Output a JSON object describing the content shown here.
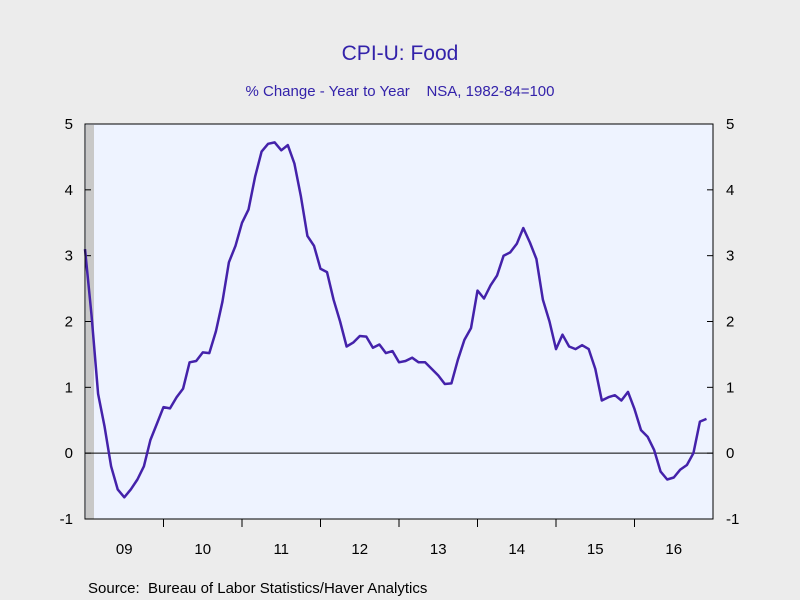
{
  "chart_data": {
    "type": "line",
    "title": "CPI-U: Food",
    "subtitle": "% Change - Year to Year    NSA, 1982-84=100",
    "source": "Source:  Bureau of Labor Statistics/Haver Analytics",
    "ylim": [
      -1,
      5
    ],
    "yticks": [
      "5",
      "4",
      "3",
      "2",
      "1",
      "0",
      "-1"
    ],
    "ytick_values": [
      5,
      4,
      3,
      2,
      1,
      0,
      -1
    ],
    "xlim": [
      2009.0,
      2017.0
    ],
    "xtick_labels": [
      "09",
      "10",
      "11",
      "12",
      "13",
      "14",
      "15",
      "16"
    ],
    "xtick_centers": [
      2009.5,
      2010.5,
      2011.5,
      2012.5,
      2013.5,
      2014.5,
      2015.5,
      2016.5
    ],
    "year_boundaries": [
      2010,
      2011,
      2012,
      2013,
      2014,
      2015,
      2016
    ],
    "recession_shade": [
      2009.0,
      2009.5
    ],
    "grid": false,
    "zero_line": true,
    "colors": {
      "line": "#4422aa",
      "title": "#3322aa",
      "plot_bg": "#eef3ff",
      "page_bg": "#ececec",
      "shade": "#c8c8c8"
    },
    "series": [
      {
        "x": [
          2009.0,
          2009.083,
          2009.167,
          2009.25,
          2009.333,
          2009.417,
          2009.5,
          2009.583,
          2009.667,
          2009.75,
          2009.833,
          2009.917,
          2010.0,
          2010.083,
          2010.167,
          2010.25,
          2010.333,
          2010.417,
          2010.5,
          2010.583,
          2010.667,
          2010.75,
          2010.833,
          2010.917,
          2011.0,
          2011.083,
          2011.167,
          2011.25,
          2011.333,
          2011.417,
          2011.5,
          2011.583,
          2011.667,
          2011.75,
          2011.833,
          2011.917,
          2012.0,
          2012.083,
          2012.167,
          2012.25,
          2012.333,
          2012.417,
          2012.5,
          2012.583,
          2012.667,
          2012.75,
          2012.833,
          2012.917,
          2013.0,
          2013.083,
          2013.167,
          2013.25,
          2013.333,
          2013.417,
          2013.5,
          2013.583,
          2013.667,
          2013.75,
          2013.833,
          2013.917,
          2014.0,
          2014.083,
          2014.167,
          2014.25,
          2014.333,
          2014.417,
          2014.5,
          2014.583,
          2014.667,
          2014.75,
          2014.833,
          2014.917,
          2015.0,
          2015.083,
          2015.167,
          2015.25,
          2015.333,
          2015.417,
          2015.5,
          2015.583,
          2015.667,
          2015.75,
          2015.833,
          2015.917,
          2016.0,
          2016.083,
          2016.167,
          2016.25,
          2016.333,
          2016.417,
          2016.5,
          2016.583,
          2016.667,
          2016.75,
          2016.833,
          2016.917
        ],
        "values": [
          3.1,
          2.1,
          0.9,
          0.4,
          -0.2,
          -0.55,
          -0.67,
          -0.55,
          -0.4,
          -0.2,
          0.2,
          0.45,
          0.7,
          0.68,
          0.85,
          0.98,
          1.38,
          1.4,
          1.53,
          1.52,
          1.85,
          2.3,
          2.9,
          3.15,
          3.5,
          3.7,
          4.2,
          4.58,
          4.7,
          4.72,
          4.6,
          4.68,
          4.4,
          3.9,
          3.3,
          3.15,
          2.8,
          2.75,
          2.33,
          2.0,
          1.62,
          1.68,
          1.78,
          1.77,
          1.6,
          1.65,
          1.52,
          1.55,
          1.38,
          1.4,
          1.45,
          1.38,
          1.38,
          1.28,
          1.18,
          1.05,
          1.06,
          1.42,
          1.72,
          1.9,
          2.47,
          2.35,
          2.55,
          2.7,
          3.0,
          3.05,
          3.18,
          3.42,
          3.2,
          2.95,
          2.33,
          2.0,
          1.58,
          1.8,
          1.62,
          1.58,
          1.64,
          1.58,
          1.28,
          0.8,
          0.85,
          0.88,
          0.8,
          0.93,
          0.67,
          0.35,
          0.25,
          0.05,
          -0.28,
          -0.4,
          -0.37,
          -0.25,
          -0.18,
          0.0,
          0.48,
          0.52
        ]
      }
    ]
  }
}
